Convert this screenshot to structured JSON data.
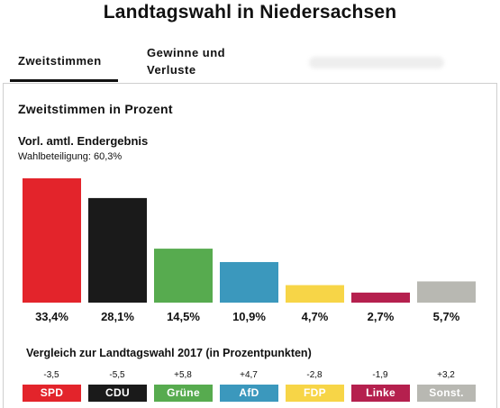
{
  "title": "Landtagswahl in Niedersachsen",
  "tabs": [
    {
      "label": "Zweitstimmen",
      "active": true
    },
    {
      "label": "Gewinne und Verluste",
      "active": false
    }
  ],
  "section_title": "Zweitstimmen in Prozent",
  "subtitle": "Vorl. amtl. Endergebnis",
  "turnout": "Wahlbeteiligung: 60,3%",
  "comparison_title": "Vergleich zur Landtagswahl 2017 (in Prozentpunkten)",
  "chart_data": {
    "type": "bar",
    "categories": [
      "SPD",
      "CDU",
      "Grüne",
      "AfD",
      "FDP",
      "Linke",
      "Sonst."
    ],
    "values": [
      33.4,
      28.1,
      14.5,
      10.9,
      4.7,
      2.7,
      5.7
    ],
    "value_labels": [
      "33,4%",
      "28,1%",
      "14,5%",
      "10,9%",
      "4,7%",
      "2,7%",
      "5,7%"
    ],
    "changes": [
      -3.5,
      -5.5,
      5.8,
      4.7,
      -2.8,
      -1.9,
      3.2
    ],
    "change_labels": [
      "-3,5",
      "-5,5",
      "+5,8",
      "+4,7",
      "-2,8",
      "-1,9",
      "+3,2"
    ],
    "colors": [
      "#e3242b",
      "#1a1a1a",
      "#57ab4f",
      "#3b98bd",
      "#f7d547",
      "#b5204e",
      "#b8b8b2"
    ],
    "label_colors": [
      "#ffffff",
      "#ffffff",
      "#ffffff",
      "#ffffff",
      "#ffffff",
      "#ffffff",
      "#ffffff"
    ],
    "ylim": [
      0,
      33.4
    ],
    "grid": false,
    "legend": "none"
  }
}
